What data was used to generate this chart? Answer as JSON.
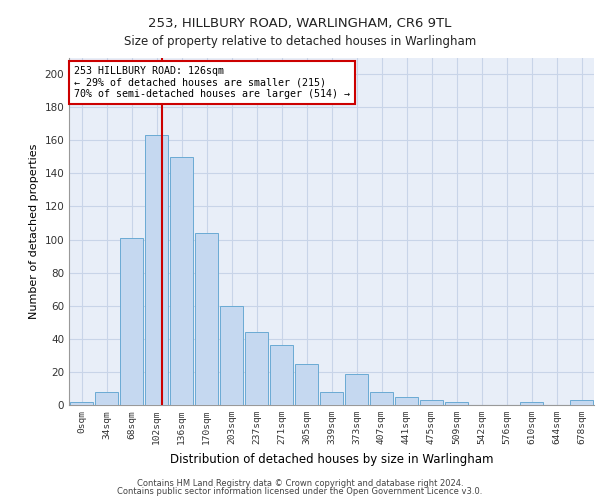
{
  "title1": "253, HILLBURY ROAD, WARLINGHAM, CR6 9TL",
  "title2": "Size of property relative to detached houses in Warlingham",
  "xlabel": "Distribution of detached houses by size in Warlingham",
  "ylabel": "Number of detached properties",
  "bar_labels": [
    "0sqm",
    "34sqm",
    "68sqm",
    "102sqm",
    "136sqm",
    "170sqm",
    "203sqm",
    "237sqm",
    "271sqm",
    "305sqm",
    "339sqm",
    "373sqm",
    "407sqm",
    "441sqm",
    "475sqm",
    "509sqm",
    "542sqm",
    "576sqm",
    "610sqm",
    "644sqm",
    "678sqm"
  ],
  "bar_values": [
    2,
    8,
    101,
    163,
    150,
    104,
    60,
    44,
    36,
    25,
    8,
    19,
    8,
    5,
    3,
    2,
    0,
    0,
    2,
    0,
    3
  ],
  "bar_color": "#c5d8f0",
  "bar_edge_color": "#6aaad4",
  "grid_color": "#c8d4e8",
  "background_color": "#e8eef8",
  "vline_color": "#cc0000",
  "annotation_text": "253 HILLBURY ROAD: 126sqm\n← 29% of detached houses are smaller (215)\n70% of semi-detached houses are larger (514) →",
  "annotation_box_color": "#ffffff",
  "annotation_box_edge": "#cc0000",
  "footer1": "Contains HM Land Registry data © Crown copyright and database right 2024.",
  "footer2": "Contains public sector information licensed under the Open Government Licence v3.0.",
  "ylim": [
    0,
    210
  ],
  "yticks": [
    0,
    20,
    40,
    60,
    80,
    100,
    120,
    140,
    160,
    180,
    200
  ]
}
